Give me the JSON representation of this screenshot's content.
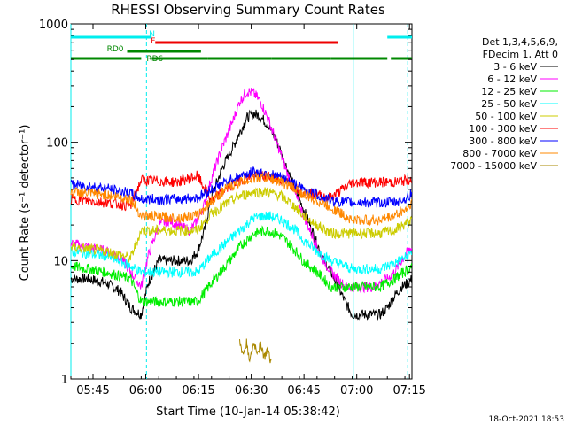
{
  "chart_data": {
    "type": "line",
    "title": "RHESSI Observing Summary Count Rates",
    "xlabel": "Start Time (10-Jan-14 05:38:42)",
    "ylabel": "Count Rate (s⁻¹ detector⁻¹)",
    "yscale": "log",
    "ylim": [
      1,
      1000
    ],
    "xlim_minutes_after_start": [
      0,
      97
    ],
    "x_ticks": [
      {
        "label": "05:45",
        "minute": 6.3
      },
      {
        "label": "06:00",
        "minute": 21.3
      },
      {
        "label": "06:15",
        "minute": 36.3
      },
      {
        "label": "06:30",
        "minute": 51.3
      },
      {
        "label": "06:45",
        "minute": 66.3
      },
      {
        "label": "07:00",
        "minute": 81.3
      },
      {
        "label": "07:15",
        "minute": 96.3
      }
    ],
    "y_ticks": [
      {
        "label": "1",
        "value": 1
      },
      {
        "label": "10",
        "value": 10
      },
      {
        "label": "100",
        "value": 100
      },
      {
        "label": "1000",
        "value": 1000
      }
    ],
    "legend_header": [
      "Det 1,3,4,5,6,9,",
      "FDecim 1, Att 0"
    ],
    "legend_placement": "right",
    "series": [
      {
        "name": "3 - 6 keV",
        "color": "#000000",
        "x": [
          0,
          5,
          10,
          14,
          17,
          20,
          22,
          25,
          30,
          34,
          36,
          38,
          40,
          43,
          46,
          48,
          50,
          52,
          54,
          56,
          58,
          60,
          62,
          64,
          66,
          68,
          70,
          72,
          74,
          76,
          78,
          80,
          82,
          84,
          86,
          88,
          90,
          92,
          94,
          96,
          97
        ],
        "y": [
          7,
          7,
          6.5,
          5.5,
          4,
          3.5,
          6.5,
          10,
          10,
          10,
          12,
          18,
          35,
          60,
          90,
          120,
          160,
          175,
          165,
          140,
          110,
          80,
          55,
          38,
          28,
          20,
          14,
          10,
          8,
          6,
          4.5,
          3.5,
          3.5,
          3.5,
          3.5,
          3.5,
          4,
          5,
          6,
          6.5,
          7
        ]
      },
      {
        "name": "6 - 12 keV",
        "color": "#ff00ff",
        "x": [
          0,
          5,
          10,
          14,
          17,
          20,
          22,
          25,
          28,
          30,
          34,
          36,
          38,
          40,
          43,
          46,
          48,
          50,
          52,
          54,
          56,
          58,
          60,
          62,
          64,
          66,
          68,
          70,
          72,
          74,
          76,
          78,
          80,
          82,
          84,
          86,
          88,
          90,
          92,
          94,
          96,
          97
        ],
        "y": [
          14,
          13,
          12,
          11,
          8,
          6,
          11,
          20,
          22,
          20,
          18,
          22,
          30,
          50,
          90,
          150,
          220,
          270,
          260,
          220,
          160,
          110,
          75,
          50,
          35,
          25,
          18,
          13,
          10,
          8,
          7,
          6,
          6,
          6,
          6,
          6,
          6.5,
          7,
          8,
          10,
          12,
          13
        ]
      },
      {
        "name": "12 - 25 keV",
        "color": "#00ee00",
        "x": [
          0,
          10,
          17,
          20,
          30,
          36,
          40,
          44,
          48,
          52,
          56,
          60,
          64,
          66,
          70,
          74,
          80,
          86,
          88,
          92,
          96,
          97
        ],
        "y": [
          9,
          8,
          7,
          4.5,
          4.5,
          4.5,
          6.5,
          9,
          13,
          17,
          18,
          16,
          12,
          10,
          8,
          6,
          6,
          6,
          6,
          7,
          8.5,
          9
        ]
      },
      {
        "name": "25 - 50 keV",
        "color": "#00ffff",
        "x": [
          0,
          10,
          17,
          20,
          30,
          36,
          40,
          44,
          48,
          52,
          56,
          60,
          64,
          66,
          70,
          74,
          80,
          86,
          88,
          92,
          96,
          97
        ],
        "y": [
          12,
          11,
          9,
          8,
          8,
          8,
          11,
          14,
          18,
          23,
          24,
          22,
          18,
          15,
          12,
          10,
          8.5,
          8.5,
          8.5,
          9.5,
          11,
          12
        ]
      },
      {
        "name": "50 - 100 keV",
        "color": "#cccc00",
        "x": [
          0,
          10,
          17,
          20,
          30,
          36,
          40,
          44,
          48,
          52,
          56,
          60,
          64,
          66,
          70,
          74,
          80,
          86,
          88,
          92,
          96,
          97
        ],
        "y": [
          13,
          12,
          10.5,
          18,
          18,
          18,
          25,
          30,
          35,
          38,
          38,
          35,
          28,
          24,
          20,
          17,
          17,
          17,
          17,
          18,
          21,
          22
        ]
      },
      {
        "name": "100 - 300 keV",
        "color": "#ff0000",
        "x": [
          0,
          10,
          17,
          20,
          30,
          36,
          40,
          44,
          48,
          52,
          56,
          60,
          64,
          66,
          70,
          74,
          80,
          86,
          88,
          92,
          96,
          97
        ],
        "y": [
          33,
          31,
          29,
          48,
          46,
          52,
          32,
          40,
          48,
          52,
          52,
          48,
          42,
          38,
          36,
          34,
          46,
          46,
          46,
          46,
          48,
          50
        ]
      },
      {
        "name": "300 - 800 keV",
        "color": "#0000ff",
        "x": [
          0,
          10,
          17,
          20,
          30,
          36,
          40,
          44,
          48,
          52,
          56,
          60,
          64,
          66,
          70,
          74,
          80,
          86,
          88,
          92,
          96,
          97
        ],
        "y": [
          44,
          41,
          37,
          33,
          33,
          34,
          40,
          46,
          52,
          56,
          55,
          50,
          44,
          40,
          36,
          32,
          31,
          31,
          31,
          31,
          34,
          38
        ]
      },
      {
        "name": "800 - 7000 keV",
        "color": "#ff8800",
        "x": [
          0,
          10,
          17,
          20,
          30,
          36,
          40,
          44,
          48,
          52,
          56,
          60,
          64,
          66,
          70,
          74,
          80,
          86,
          88,
          92,
          96,
          97
        ],
        "y": [
          38,
          36,
          33,
          24,
          23,
          24,
          32,
          40,
          46,
          50,
          50,
          46,
          40,
          36,
          32,
          28,
          22,
          22,
          22,
          24,
          28,
          32
        ]
      },
      {
        "name": "7000 - 15000 keV",
        "color": "#aa8800",
        "x": [
          48,
          49,
          50,
          51,
          52,
          53,
          54,
          55,
          56,
          57
        ],
        "y": [
          2,
          1.6,
          2,
          1.4,
          2,
          1.7,
          2,
          1.5,
          1.8,
          1.3
        ]
      }
    ],
    "state_bars": [
      {
        "label": "N",
        "color": "#00eeee",
        "segments": [
          [
            0,
            23
          ],
          [
            90,
            97
          ]
        ]
      },
      {
        "label": "F",
        "color": "#ee0000",
        "segments": [
          [
            24,
            76
          ]
        ]
      },
      {
        "label": "RD0",
        "color": "#008800",
        "segments": [
          [
            16,
            37
          ]
        ]
      },
      {
        "label": "RD6",
        "color": "#008800",
        "segments": [
          [
            0,
            20
          ],
          [
            23,
            39
          ],
          [
            39,
            57
          ],
          [
            57,
            74
          ],
          [
            74,
            90
          ],
          [
            91,
            97
          ]
        ]
      }
    ],
    "vertical_markers": [
      {
        "minute": 0,
        "color": "#00eeee",
        "style": "solid"
      },
      {
        "minute": 21.5,
        "color": "#00eeee",
        "style": "dashed"
      },
      {
        "minute": 80.3,
        "color": "#00eeee",
        "style": "solid"
      },
      {
        "minute": 95.8,
        "color": "#00eeee",
        "style": "dashed"
      }
    ],
    "timestamp": "18-Oct-2021 18:53"
  }
}
